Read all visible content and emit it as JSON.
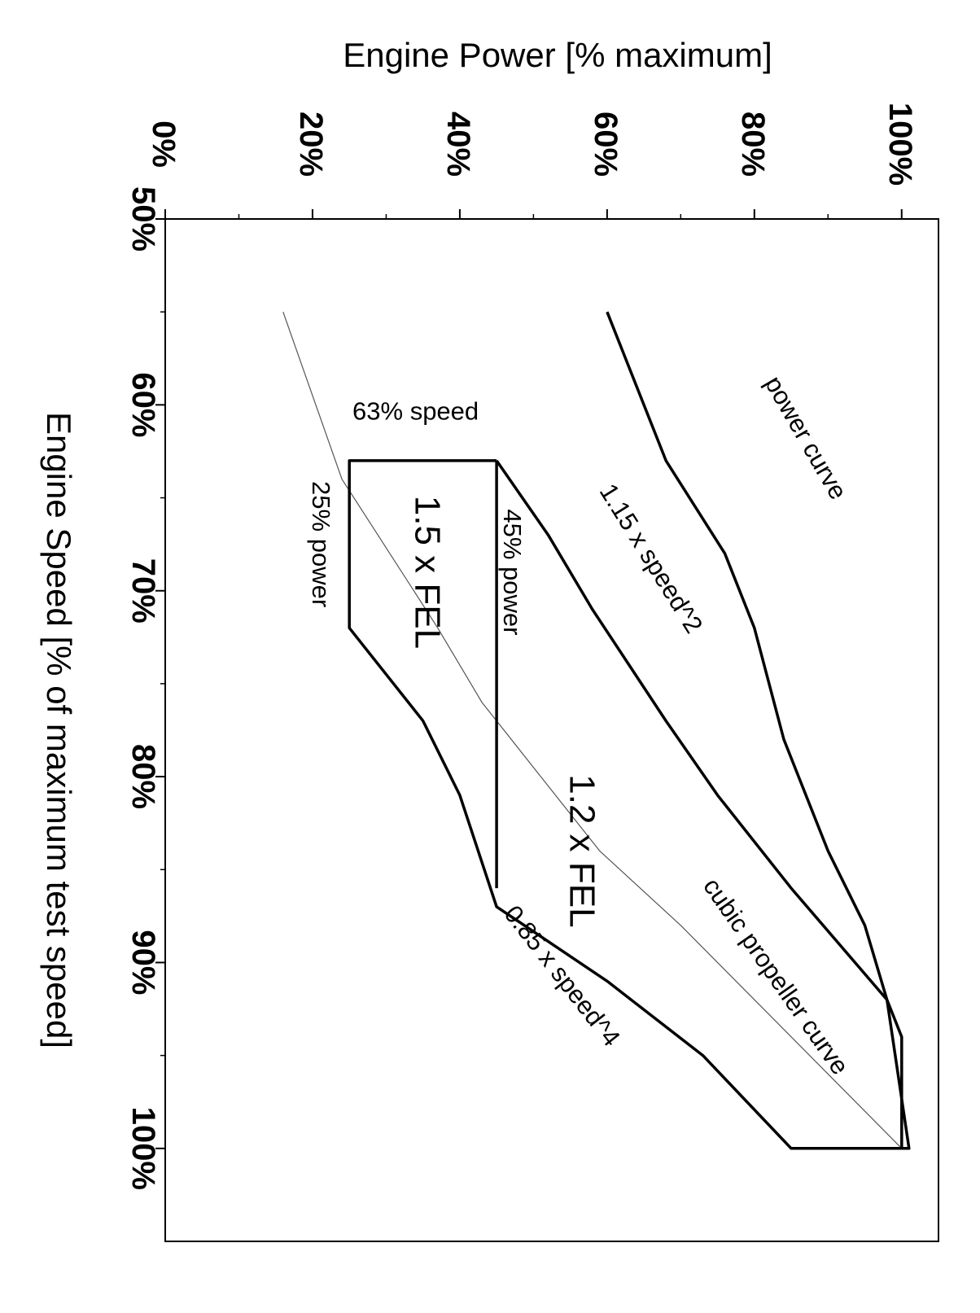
{
  "chart_data": {
    "type": "line",
    "orientation": "rotated 90 degrees clockwise",
    "xlabel": "Engine Speed [% of maximum test speed]",
    "ylabel": "Engine Power [% maximum]",
    "xlim": [
      50,
      105
    ],
    "ylim": [
      0,
      105
    ],
    "x_ticks": [
      "50%",
      "60%",
      "70%",
      "80%",
      "90%",
      "100%"
    ],
    "x_tick_values": [
      50,
      60,
      70,
      80,
      90,
      100
    ],
    "y_ticks": [
      "0%",
      "20%",
      "40%",
      "60%",
      "80%",
      "100%"
    ],
    "y_tick_values": [
      0,
      20,
      40,
      60,
      80,
      100
    ],
    "grid": false,
    "series": [
      {
        "x": [
          55,
          63,
          68,
          72,
          78,
          84,
          88,
          92,
          94,
          100
        ],
        "y": [
          60,
          68,
          76,
          80,
          84,
          90,
          95,
          98,
          100,
          100
        ]
      },
      {
        "x": [
          55,
          64,
          72,
          76,
          80,
          84,
          88,
          92,
          100
        ],
        "y": [
          16,
          24,
          37,
          43,
          51,
          59,
          70,
          80,
          100
        ]
      },
      {
        "x": [
          63,
          63,
          72,
          77,
          81,
          87,
          91,
          95,
          100,
          100,
          92
        ],
        "y": [
          45,
          25,
          25,
          35,
          40,
          45,
          60,
          73,
          85,
          101,
          98
        ]
      },
      {
        "x": [
          63,
          67,
          71,
          74,
          77,
          81,
          86,
          92
        ],
        "y": [
          45,
          52,
          58,
          63,
          68,
          75,
          85,
          98
        ]
      },
      {
        "x": [
          63,
          86
        ],
        "y": [
          45,
          45
        ]
      }
    ],
    "annotations": [
      {
        "text": "power curve"
      },
      {
        "text": "63% speed"
      },
      {
        "text": "1.15 x speed^2"
      },
      {
        "text": "45% power"
      },
      {
        "text": "25% power"
      },
      {
        "text": "1.5 x FEL"
      },
      {
        "text": "1.2 x FEL"
      },
      {
        "text": "cubic propeller curve"
      },
      {
        "text": "0.85 x speed^4"
      }
    ]
  }
}
